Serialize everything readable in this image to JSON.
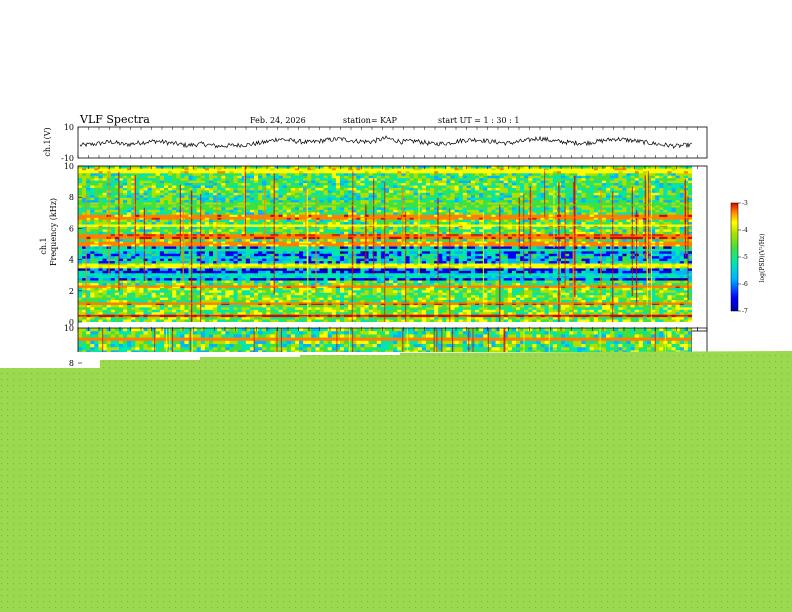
{
  "header": {
    "title": "VLF Spectra",
    "date": "Feb. 24, 2026",
    "station": "station= KAP",
    "start": "start UT =  1 : 30 : 1"
  },
  "colors": {
    "background": "#ffffff",
    "cover": "#9bd94e",
    "cover_dot": "#7fb73a",
    "waveform": "#000000"
  },
  "chart_data": [
    {
      "type": "line",
      "name": "waveform",
      "ylabel": "ch.1(V)",
      "ylim": [
        -10,
        10
      ],
      "yticks": [
        10,
        -10
      ],
      "yticklabels": [
        "10",
        "-10"
      ],
      "x": [
        0,
        0.025,
        0.05,
        0.075,
        0.1,
        0.125,
        0.15,
        0.175,
        0.2,
        0.225,
        0.25,
        0.275,
        0.3,
        0.325,
        0.35,
        0.375,
        0.4,
        0.425,
        0.45,
        0.475,
        0.5,
        0.525,
        0.55,
        0.575,
        0.6,
        0.625,
        0.65,
        0.675,
        0.7,
        0.725,
        0.75,
        0.775,
        0.8,
        0.825,
        0.85,
        0.875,
        0.9,
        0.925,
        0.95,
        0.975,
        1.0
      ],
      "y": [
        -2,
        -1,
        0.5,
        -1.5,
        0,
        1,
        -0.5,
        -2,
        -1,
        -2.5,
        -2,
        -1.5,
        0,
        2.5,
        1,
        0,
        1.5,
        2.5,
        1,
        0.5,
        3,
        0.5,
        1,
        -1,
        -0.5,
        1.5,
        2,
        0.5,
        -0.5,
        1,
        3,
        1,
        0,
        -0.5,
        1,
        2.5,
        1.5,
        0,
        -1.5,
        -2.5,
        -1.5
      ]
    },
    {
      "type": "heatmap",
      "name": "ch1-spectrogram",
      "ylabel_top": "ch.1",
      "ylabel": "Frequency (kHz)",
      "ylim": [
        0,
        10
      ],
      "yticks": [
        0,
        2,
        4,
        6,
        8,
        10
      ],
      "yticklabels": [
        "0",
        "2",
        "4",
        "6",
        "8",
        "10"
      ],
      "colorscale": [
        "#0000a0",
        "#0000ff",
        "#00b4ff",
        "#00e6b0",
        "#40e040",
        "#b0e000",
        "#ffff00",
        "#ff8000",
        "#e00000"
      ],
      "colorbar": {
        "label": "log(PSD)(V²/Hz)",
        "range": [
          -7,
          -3
        ],
        "ticks": [
          -3,
          -4,
          -5,
          -6,
          -7
        ],
        "ticklabels": [
          "-3",
          "-4",
          "-5",
          "-6",
          "-7"
        ]
      },
      "bands": [
        {
          "kHz": 0.4,
          "log_psd": -3.2
        },
        {
          "kHz": 1.2,
          "log_psd": -3.4
        },
        {
          "kHz": 2.3,
          "log_psd": -3.5
        },
        {
          "kHz": 3.0,
          "log_psd": -5.6
        },
        {
          "kHz": 3.6,
          "log_psd": -4.2
        },
        {
          "kHz": 4.6,
          "log_psd": -5.3
        },
        {
          "kHz": 5.0,
          "log_psd": -3.6
        },
        {
          "kHz": 5.5,
          "log_psd": -3.3
        },
        {
          "kHz": 6.2,
          "log_psd": -4.0
        },
        {
          "kHz": 6.7,
          "log_psd": -3.5
        },
        {
          "kHz": 7.5,
          "log_psd": -4.8
        },
        {
          "kHz": 9.7,
          "log_psd": -4.0
        }
      ]
    },
    {
      "type": "heatmap",
      "name": "ch2-spectrogram-partial",
      "ylim": [
        0,
        10
      ],
      "yticks": [
        8,
        10
      ],
      "yticklabels": [
        "8",
        "10"
      ]
    }
  ]
}
